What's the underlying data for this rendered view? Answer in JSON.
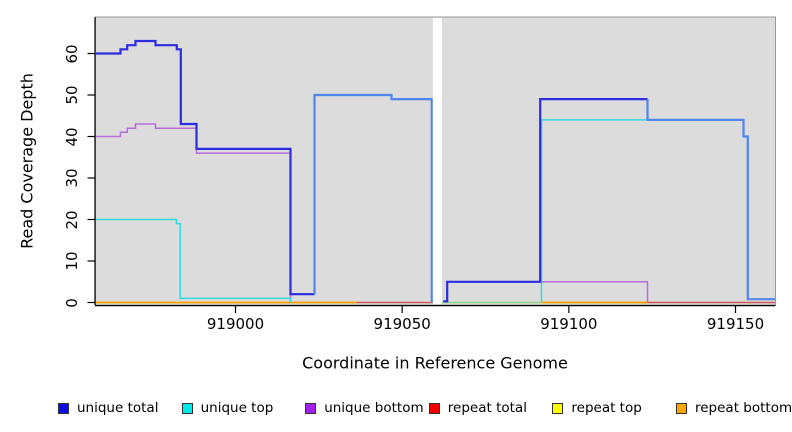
{
  "figure": {
    "bg": "#ffffff",
    "plot_bg": "#dcdcdc",
    "border_color": "#999999",
    "axis_color": "#000000"
  },
  "chart_data": {
    "type": "line",
    "title": "",
    "xlabel": "Coordinate in Reference Genome",
    "ylabel": "Read Coverage Depth",
    "xlim": [
      918958,
      919162
    ],
    "ylim": [
      0,
      65
    ],
    "xticks": [
      919000,
      919050,
      919100,
      919150
    ],
    "yticks": [
      0,
      10,
      20,
      30,
      40,
      50,
      60
    ],
    "grid": false,
    "legend_position": "bottom",
    "gap": {
      "x_start": 919059.2,
      "x_end": 919061.9
    },
    "legend": [
      {
        "label": "unique total",
        "color": "#0b0bf0"
      },
      {
        "label": "unique top",
        "color": "#00e8e8"
      },
      {
        "label": "unique bottom",
        "color": "#a020f0"
      },
      {
        "label": "repeat total",
        "color": "#f00000"
      },
      {
        "label": "repeat top",
        "color": "#ffff00"
      },
      {
        "label": "repeat bottom",
        "color": "#ffa500"
      }
    ],
    "series": [
      {
        "name": "repeat top",
        "color": "#f2f20a",
        "width": 1.6,
        "segments": [
          {
            "points": [
              [
                918958,
                0
              ],
              [
                919059.2,
                0
              ]
            ]
          },
          {
            "points": [
              [
                919061.9,
                0
              ],
              [
                919162,
                0
              ]
            ]
          }
        ]
      },
      {
        "name": "repeat bottom",
        "color": "#ff9d00",
        "width": 1.8,
        "segments": [
          {
            "points": [
              [
                918958,
                0
              ],
              [
                919036.3,
                0
              ]
            ]
          },
          {
            "points": [
              [
                919091.8,
                0
              ],
              [
                919123.6,
                0
              ]
            ]
          }
        ]
      },
      {
        "name": "repeat total",
        "color": "#cc5577",
        "width": 1.6,
        "segments": [
          {
            "points": [
              [
                919036.3,
                0
              ],
              [
                919059.2,
                0
              ]
            ]
          },
          {
            "points": [
              [
                919123.6,
                0
              ],
              [
                919162,
                0
              ]
            ]
          }
        ]
      },
      {
        "name": "unique bottom",
        "color": "#b46fd9",
        "width": 1.5,
        "segments": [
          {
            "points": [
              [
                918958,
                40
              ],
              [
                918965.5,
                40
              ],
              [
                918965.5,
                41
              ],
              [
                918967.5,
                41
              ],
              [
                918967.5,
                42
              ],
              [
                918970,
                42
              ],
              [
                918970,
                43
              ],
              [
                918976,
                43
              ],
              [
                918976,
                42
              ],
              [
                918988.3,
                42
              ],
              [
                918988.3,
                36
              ],
              [
                919016.5,
                36
              ],
              [
                919016.5,
                0
              ]
            ]
          },
          {
            "points": [
              [
                919091.8,
                5
              ],
              [
                919123.6,
                5
              ],
              [
                919123.6,
                0
              ]
            ]
          }
        ]
      },
      {
        "name": "unique top",
        "color": "#35d8de",
        "width": 1.5,
        "segments": [
          {
            "points": [
              [
                918958,
                20
              ],
              [
                918982.3,
                20
              ],
              [
                918982.3,
                19
              ],
              [
                918983.4,
                19
              ],
              [
                918983.4,
                1
              ],
              [
                919016.5,
                1
              ],
              [
                919016.5,
                0
              ]
            ]
          },
          {
            "points": [
              [
                919091.8,
                0
              ],
              [
                919091.8,
                44
              ],
              [
                919123.6,
                44
              ]
            ]
          },
          {
            "color": "#8ecf9b",
            "points": [
              [
                919062,
                0
              ],
              [
                919091.8,
                0
              ]
            ]
          }
        ]
      },
      {
        "name": "unique total",
        "color": "#2c2ce0",
        "width": 2.2,
        "segments": [
          {
            "points": [
              [
                918958,
                60
              ],
              [
                918965.5,
                60
              ],
              [
                918965.5,
                61
              ],
              [
                918967.5,
                61
              ],
              [
                918967.5,
                62
              ],
              [
                918970,
                62
              ],
              [
                918970,
                63
              ],
              [
                918976,
                63
              ],
              [
                918976,
                62
              ],
              [
                918982.4,
                62
              ],
              [
                918982.4,
                61
              ],
              [
                918983.6,
                61
              ],
              [
                918983.6,
                43
              ],
              [
                918988.3,
                43
              ],
              [
                918988.3,
                37
              ],
              [
                919016.5,
                37
              ],
              [
                919016.5,
                2
              ],
              [
                919023.7,
                2
              ]
            ]
          },
          {
            "color": "#4e86ee",
            "points": [
              [
                919023.7,
                2
              ],
              [
                919023.7,
                50
              ],
              [
                919046.8,
                50
              ],
              [
                919046.8,
                49
              ],
              [
                919058.9,
                49
              ],
              [
                919058.9,
                0.3
              ],
              [
                919059.3,
                0.3
              ]
            ]
          },
          {
            "points": [
              [
                919062.3,
                0.3
              ],
              [
                919063.5,
                0.3
              ],
              [
                919063.5,
                5
              ],
              [
                919091.4,
                5
              ],
              [
                919091.4,
                49
              ],
              [
                919123.6,
                49
              ]
            ]
          },
          {
            "color": "#4e86ee",
            "points": [
              [
                919123.6,
                49
              ],
              [
                919123.6,
                44
              ],
              [
                919152.4,
                44
              ],
              [
                919152.4,
                40
              ],
              [
                919153.7,
                40
              ],
              [
                919153.7,
                0.8
              ],
              [
                919162,
                0.8
              ]
            ]
          }
        ]
      }
    ]
  }
}
